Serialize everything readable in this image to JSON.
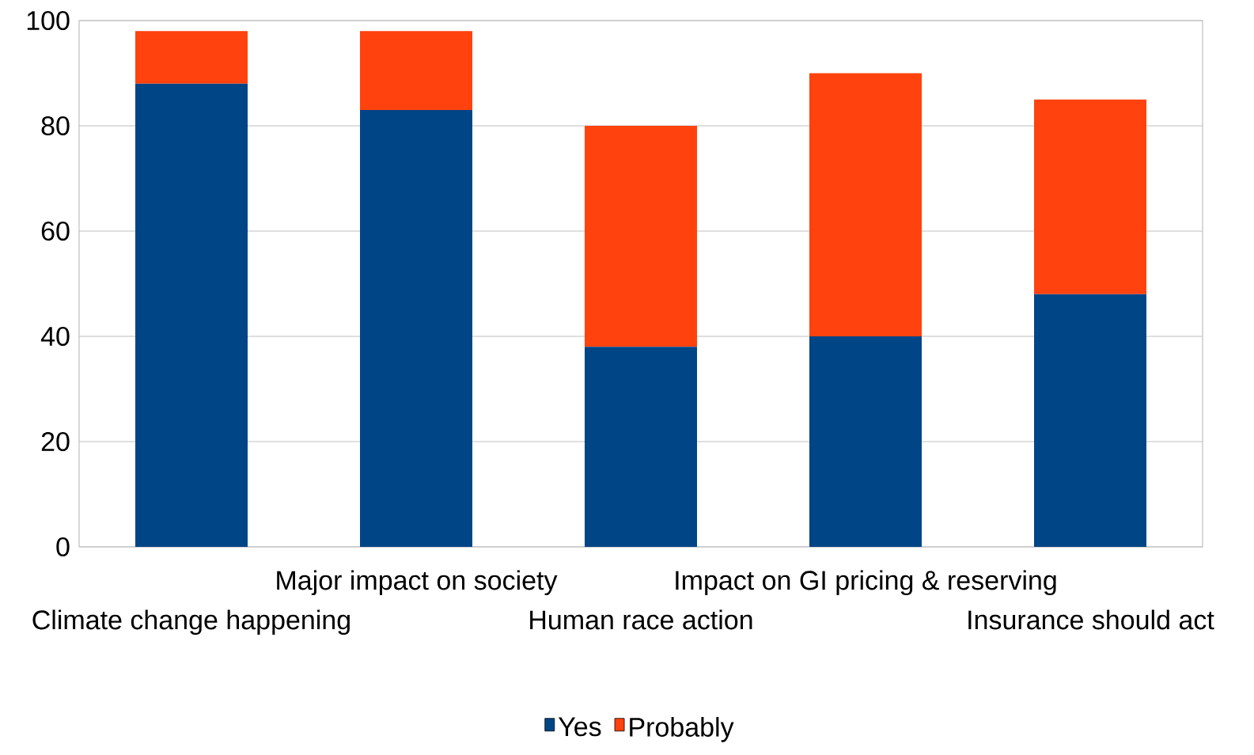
{
  "chart_data": {
    "type": "bar",
    "stacked": true,
    "categories": [
      "Climate change happening",
      "Major impact on society",
      "Human race action",
      "Impact on GI pricing & reserving",
      "Insurance should act"
    ],
    "series": [
      {
        "name": "Yes",
        "color": "#004586",
        "values": [
          88,
          83,
          38,
          40,
          48
        ]
      },
      {
        "name": "Probably",
        "color": "#ff420e",
        "values": [
          10,
          15,
          42,
          50,
          37
        ]
      }
    ],
    "ylim": [
      0,
      100
    ],
    "yticks": [
      0,
      20,
      40,
      60,
      80,
      100
    ],
    "grid": "y",
    "legend": "bottom"
  }
}
